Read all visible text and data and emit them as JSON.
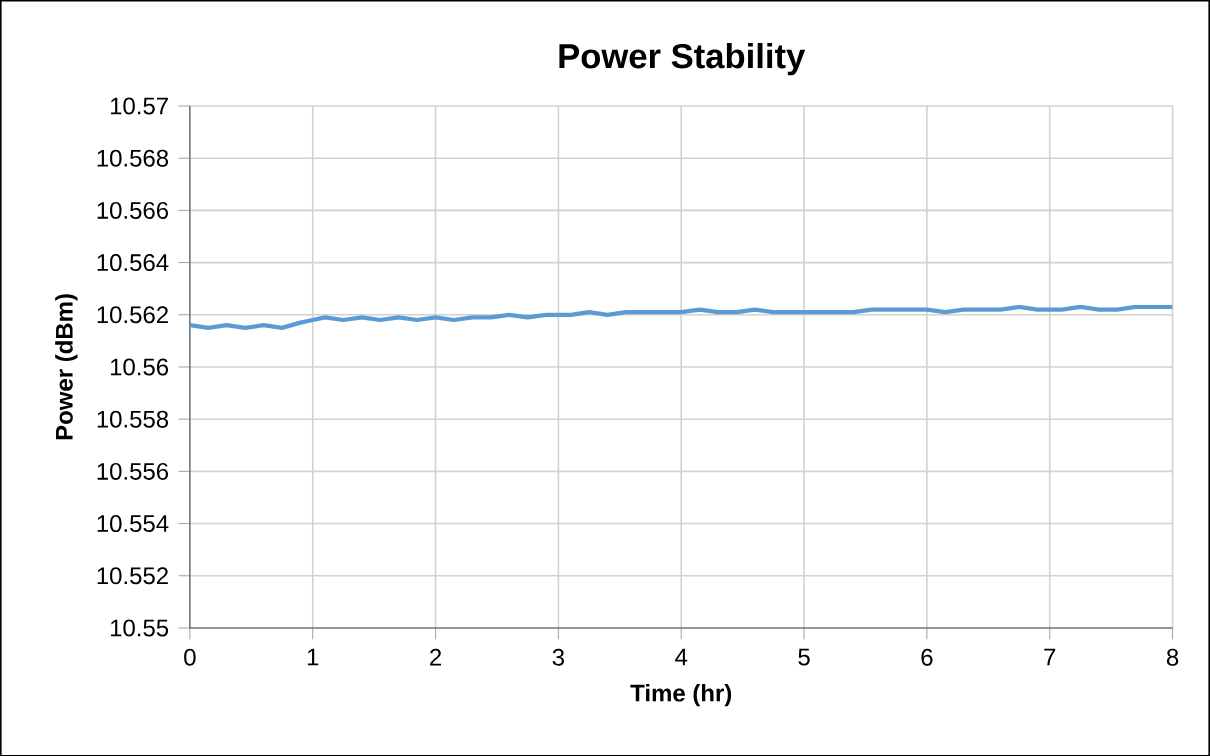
{
  "chart_data": {
    "type": "line",
    "title": "Power Stability",
    "xlabel": "Time (hr)",
    "ylabel": "Power (dBm)",
    "x": [
      0,
      0.15,
      0.3,
      0.45,
      0.6,
      0.75,
      0.9,
      1.0,
      1.1,
      1.25,
      1.4,
      1.55,
      1.7,
      1.85,
      2.0,
      2.15,
      2.3,
      2.45,
      2.6,
      2.75,
      2.9,
      3.0,
      3.1,
      3.25,
      3.4,
      3.55,
      3.7,
      3.85,
      4.0,
      4.15,
      4.3,
      4.45,
      4.6,
      4.75,
      4.9,
      5.0,
      5.1,
      5.25,
      5.4,
      5.55,
      5.7,
      5.85,
      6.0,
      6.15,
      6.3,
      6.45,
      6.6,
      6.75,
      6.9,
      7.0,
      7.1,
      7.25,
      7.4,
      7.55,
      7.7,
      7.85,
      8.0
    ],
    "series": [
      {
        "color": "#5b9bd5",
        "values": [
          10.5616,
          10.5615,
          10.5616,
          10.5615,
          10.5616,
          10.5615,
          10.5617,
          10.5618,
          10.5619,
          10.5618,
          10.5619,
          10.5618,
          10.5619,
          10.5618,
          10.5619,
          10.5618,
          10.5619,
          10.5619,
          10.562,
          10.5619,
          10.562,
          10.562,
          10.562,
          10.5621,
          10.562,
          10.5621,
          10.5621,
          10.5621,
          10.5621,
          10.5622,
          10.5621,
          10.5621,
          10.5622,
          10.5621,
          10.5621,
          10.5621,
          10.5621,
          10.5621,
          10.5621,
          10.5622,
          10.5622,
          10.5622,
          10.5622,
          10.5621,
          10.5622,
          10.5622,
          10.5622,
          10.5623,
          10.5622,
          10.5622,
          10.5622,
          10.5623,
          10.5622,
          10.5622,
          10.5623,
          10.5623,
          10.5623
        ]
      }
    ],
    "xlim": [
      0,
      8
    ],
    "ylim": [
      10.55,
      10.57
    ],
    "xticks": [
      0,
      1,
      2,
      3,
      4,
      5,
      6,
      7,
      8
    ],
    "yticks": [
      10.55,
      10.552,
      10.554,
      10.556,
      10.558,
      10.56,
      10.562,
      10.564,
      10.566,
      10.568,
      10.57
    ],
    "grid": true,
    "marker": "none",
    "line_style": "solid"
  }
}
